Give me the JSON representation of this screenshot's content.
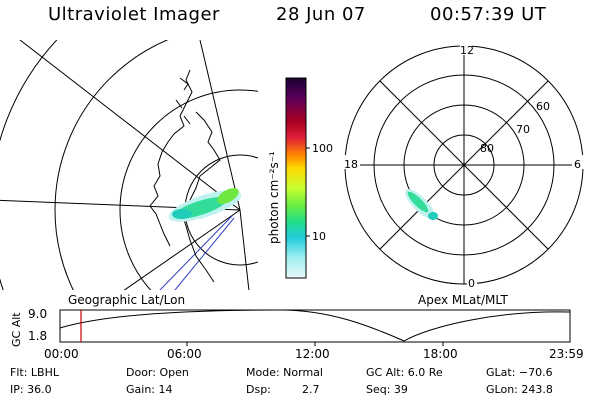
{
  "header": {
    "instrument": "Ultraviolet Imager",
    "date": "28 Jun 07",
    "time": "00:57:39 UT"
  },
  "map_left": {
    "caption": "Geographic Lat/Lon"
  },
  "map_right": {
    "caption": "Apex MLat/MLT",
    "mlt_labels": [
      "12",
      "18",
      "6",
      "0"
    ],
    "lat_labels": [
      "60",
      "70",
      "80"
    ]
  },
  "colorbar": {
    "label": "photon cm⁻²s⁻¹",
    "ticks": [
      "100",
      "10"
    ],
    "scale": "log",
    "colors": [
      "#1a0030",
      "#5a005a",
      "#aa0020",
      "#e0203a",
      "#ff8000",
      "#ffd800",
      "#c8ff30",
      "#66ee44",
      "#22dd88",
      "#22ccdd",
      "#a0f0f0",
      "#e8f8f8"
    ]
  },
  "altitude_plot": {
    "ylabel": "GC Alt",
    "y_ticks": [
      "9.0",
      "1.8"
    ],
    "x_ticks": [
      "00:00",
      "06:00",
      "12:00",
      "18:00",
      "23:59"
    ],
    "marker_color": "#cc0000"
  },
  "status": {
    "flt": "Flt: LBHL",
    "ip": "IP: 36.0",
    "door": "Door: Open",
    "gain": "Gain: 14",
    "mode": "Mode: Normal",
    "dsp": "Dsp:",
    "dsp_val": "2.7",
    "gcalt": "GC Alt: 6.0 Re",
    "seq": "Seq: 39",
    "glat": "GLat: −70.6",
    "glon": "GLon: 243.8"
  }
}
